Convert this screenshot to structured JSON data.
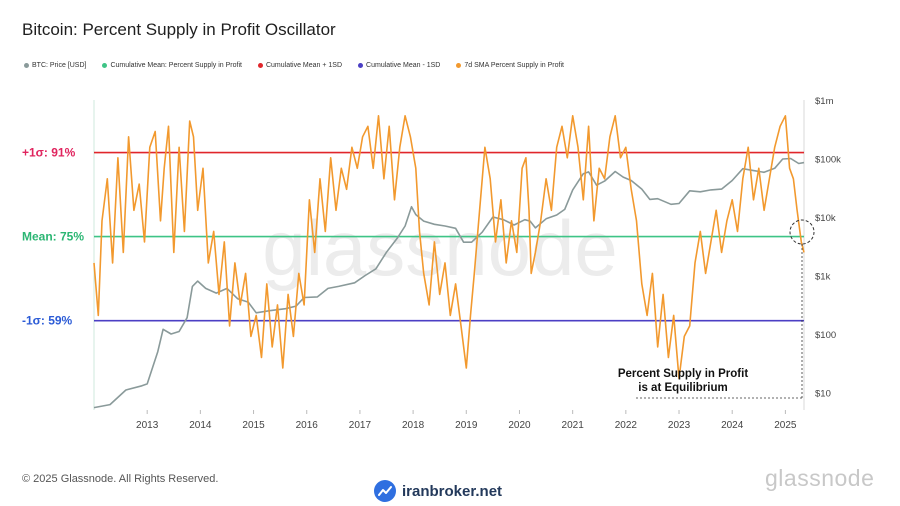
{
  "header": {
    "title": "Bitcoin: Percent Supply in Profit Oscillator"
  },
  "legend": [
    {
      "label": "BTC: Price [USD]",
      "color": "#8a9a9a"
    },
    {
      "label": "Cumulative Mean: Percent Supply in Profit",
      "color": "#3ec486"
    },
    {
      "label": "Cumulative Mean + 1SD",
      "color": "#e0262b"
    },
    {
      "label": "Cumulative Mean - 1SD",
      "color": "#4b3fc4"
    },
    {
      "label": "7d SMA Percent Supply in Profit",
      "color": "#f2992e"
    }
  ],
  "footer": {
    "copyright": "© 2025 Glassnode. All Rights Reserved.",
    "brand": "glassnode",
    "watermark": "iranbroker.net"
  },
  "chart_data": {
    "type": "line",
    "title": "Bitcoin: Percent Supply in Profit Oscillator",
    "x_ticks": [
      "2013",
      "2014",
      "2015",
      "2016",
      "2017",
      "2018",
      "2019",
      "2020",
      "2021",
      "2022",
      "2023",
      "2024",
      "2025"
    ],
    "x_range": [
      2012.0,
      2025.35
    ],
    "left_axis_range": [
      42,
      101
    ],
    "right_axis_ticks": [
      "$1m",
      "$100k",
      "$10k",
      "$1k",
      "$100",
      "$10"
    ],
    "right_axis_range_log10": [
      0.7,
      6.0
    ],
    "levels": [
      {
        "label": "+1σ: 91%",
        "value": 91,
        "color": "#e0262b",
        "text_color": "#e0245e"
      },
      {
        "label": "Mean: 75%",
        "value": 75,
        "color": "#3ec486",
        "text_color": "#2bb673"
      },
      {
        "label": "-1σ: 59%",
        "value": 59,
        "color": "#4b3fc4",
        "text_color": "#2b5bd6"
      }
    ],
    "annotation": {
      "line1": "Percent Supply in Profit",
      "line2": "is at Equilibrium"
    },
    "series": [
      {
        "name": "BTC: Price [USD]",
        "color": "#8a9a9a",
        "x": [
          2012.0,
          2012.3,
          2012.6,
          2012.9,
          2013.0,
          2013.2,
          2013.3,
          2013.45,
          2013.6,
          2013.75,
          2013.85,
          2013.95,
          2014.1,
          2014.3,
          2014.5,
          2014.7,
          2014.9,
          2015.05,
          2015.3,
          2015.6,
          2015.8,
          2015.95,
          2016.2,
          2016.4,
          2016.6,
          2016.9,
          2017.1,
          2017.3,
          2017.5,
          2017.7,
          2017.85,
          2017.97,
          2018.05,
          2018.2,
          2018.4,
          2018.6,
          2018.8,
          2018.95,
          2019.1,
          2019.3,
          2019.5,
          2019.7,
          2019.9,
          2020.1,
          2020.2,
          2020.3,
          2020.5,
          2020.7,
          2020.85,
          2021.0,
          2021.2,
          2021.3,
          2021.45,
          2021.6,
          2021.8,
          2021.95,
          2022.1,
          2022.3,
          2022.45,
          2022.6,
          2022.85,
          2023.0,
          2023.2,
          2023.4,
          2023.6,
          2023.8,
          2024.0,
          2024.2,
          2024.4,
          2024.6,
          2024.8,
          2024.95,
          2025.1,
          2025.25,
          2025.35
        ],
        "y": [
          5.5,
          6.2,
          11,
          13,
          14,
          50,
          120,
          100,
          110,
          190,
          650,
          800,
          600,
          500,
          600,
          400,
          350,
          230,
          250,
          270,
          300,
          420,
          430,
          600,
          650,
          750,
          1000,
          1300,
          2500,
          4300,
          7000,
          15000,
          11000,
          8500,
          7500,
          7000,
          6400,
          3700,
          3700,
          5500,
          10000,
          9000,
          7300,
          9000,
          8500,
          6500,
          9300,
          10800,
          13500,
          29000,
          55000,
          59000,
          35000,
          41000,
          60000,
          48000,
          42000,
          30000,
          20000,
          20500,
          16500,
          17000,
          28000,
          27000,
          29000,
          30000,
          42000,
          67000,
          62000,
          58000,
          68000,
          98000,
          100000,
          82000,
          85000
        ]
      },
      {
        "name": "7d SMA Percent Supply in Profit",
        "color": "#f2992e",
        "x": [
          2012.0,
          2012.08,
          2012.15,
          2012.25,
          2012.35,
          2012.45,
          2012.55,
          2012.65,
          2012.75,
          2012.85,
          2012.95,
          2013.05,
          2013.15,
          2013.25,
          2013.32,
          2013.4,
          2013.5,
          2013.6,
          2013.7,
          2013.8,
          2013.87,
          2013.95,
          2014.05,
          2014.15,
          2014.25,
          2014.35,
          2014.45,
          2014.55,
          2014.65,
          2014.75,
          2014.85,
          2014.95,
          2015.05,
          2015.15,
          2015.25,
          2015.35,
          2015.45,
          2015.55,
          2015.65,
          2015.75,
          2015.85,
          2015.95,
          2016.05,
          2016.15,
          2016.25,
          2016.35,
          2016.45,
          2016.55,
          2016.65,
          2016.75,
          2016.85,
          2016.95,
          2017.05,
          2017.15,
          2017.25,
          2017.35,
          2017.45,
          2017.55,
          2017.65,
          2017.75,
          2017.85,
          2017.95,
          2018.05,
          2018.12,
          2018.2,
          2018.3,
          2018.4,
          2018.5,
          2018.6,
          2018.7,
          2018.8,
          2018.9,
          2019.0,
          2019.08,
          2019.15,
          2019.25,
          2019.35,
          2019.45,
          2019.55,
          2019.65,
          2019.75,
          2019.85,
          2019.95,
          2020.05,
          2020.12,
          2020.18,
          2020.22,
          2020.3,
          2020.4,
          2020.5,
          2020.6,
          2020.7,
          2020.8,
          2020.9,
          2021.0,
          2021.1,
          2021.2,
          2021.3,
          2021.4,
          2021.5,
          2021.6,
          2021.7,
          2021.8,
          2021.9,
          2022.0,
          2022.1,
          2022.2,
          2022.3,
          2022.4,
          2022.5,
          2022.6,
          2022.7,
          2022.8,
          2022.9,
          2023.0,
          2023.1,
          2023.2,
          2023.3,
          2023.4,
          2023.5,
          2023.6,
          2023.7,
          2023.8,
          2023.9,
          2024.0,
          2024.1,
          2024.2,
          2024.3,
          2024.4,
          2024.5,
          2024.6,
          2024.7,
          2024.8,
          2024.9,
          2025.0,
          2025.08,
          2025.15,
          2025.22,
          2025.3,
          2025.35
        ],
        "y": [
          70,
          60,
          78,
          86,
          70,
          90,
          72,
          94,
          80,
          85,
          74,
          92,
          95,
          78,
          88,
          96,
          72,
          92,
          76,
          97,
          94,
          80,
          88,
          70,
          76,
          64,
          74,
          58,
          70,
          62,
          68,
          56,
          60,
          52,
          66,
          54,
          62,
          50,
          64,
          56,
          68,
          62,
          82,
          72,
          86,
          76,
          90,
          80,
          88,
          84,
          92,
          88,
          94,
          96,
          88,
          98,
          86,
          96,
          82,
          92,
          98,
          94,
          88,
          76,
          68,
          62,
          74,
          64,
          70,
          60,
          66,
          58,
          50,
          60,
          68,
          80,
          92,
          86,
          74,
          82,
          70,
          78,
          72,
          88,
          90,
          80,
          68,
          72,
          78,
          86,
          80,
          92,
          96,
          90,
          98,
          92,
          82,
          96,
          78,
          88,
          86,
          94,
          98,
          90,
          92,
          84,
          78,
          66,
          60,
          68,
          54,
          64,
          52,
          60,
          48,
          56,
          58,
          70,
          76,
          68,
          74,
          80,
          72,
          78,
          82,
          76,
          86,
          92,
          82,
          88,
          80,
          86,
          92,
          96,
          98,
          88,
          86,
          80,
          74,
          72
        ]
      }
    ]
  }
}
